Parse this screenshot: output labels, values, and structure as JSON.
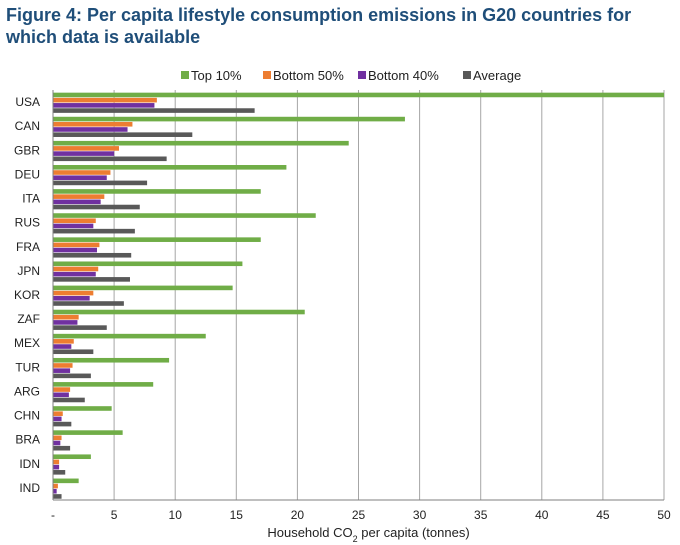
{
  "title": "Figure 4: Per capita lifestyle consumption emissions in G20 countries for which data is available",
  "chart_data": {
    "type": "bar",
    "orientation": "horizontal",
    "title": "Figure 4: Per capita lifestyle consumption emissions in G20 countries for which data is available",
    "xlabel_prefix": "Household CO",
    "xlabel_sub": "2",
    "xlabel_suffix": " per capita (tonnes)",
    "ylabel": "",
    "xlim": [
      0,
      50
    ],
    "ticks": [
      0,
      5,
      10,
      15,
      20,
      25,
      30,
      35,
      40,
      45,
      50
    ],
    "tick_labels": [
      "-",
      "5",
      "10",
      "15",
      "20",
      "25",
      "30",
      "35",
      "40",
      "45",
      "50"
    ],
    "grid": true,
    "legend_position": "top",
    "categories": [
      "USA",
      "CAN",
      "GBR",
      "DEU",
      "ITA",
      "RUS",
      "FRA",
      "JPN",
      "KOR",
      "ZAF",
      "MEX",
      "TUR",
      "ARG",
      "CHN",
      "BRA",
      "IDN",
      "IND"
    ],
    "series": [
      {
        "name": "Top 10%",
        "color": "#70ad47",
        "values": [
          50,
          28.8,
          24.2,
          19.1,
          17.0,
          21.5,
          17.0,
          15.5,
          14.7,
          20.6,
          12.5,
          9.5,
          8.2,
          4.8,
          5.7,
          3.1,
          2.1
        ]
      },
      {
        "name": "Bottom 50%",
        "color": "#ed7d31",
        "values": [
          8.5,
          6.5,
          5.4,
          4.7,
          4.2,
          3.5,
          3.8,
          3.7,
          3.3,
          2.1,
          1.7,
          1.6,
          1.4,
          0.8,
          0.7,
          0.5,
          0.4
        ]
      },
      {
        "name": "Bottom 40%",
        "color": "#7030a0",
        "values": [
          8.3,
          6.1,
          5.0,
          4.4,
          3.9,
          3.3,
          3.6,
          3.5,
          3.0,
          2.0,
          1.5,
          1.4,
          1.3,
          0.7,
          0.6,
          0.5,
          0.3
        ]
      },
      {
        "name": "Average",
        "color": "#595959",
        "values": [
          16.5,
          11.4,
          9.3,
          7.7,
          7.1,
          6.7,
          6.4,
          6.3,
          5.8,
          4.4,
          3.3,
          3.1,
          2.6,
          1.5,
          1.4,
          1.0,
          0.7
        ]
      }
    ]
  }
}
